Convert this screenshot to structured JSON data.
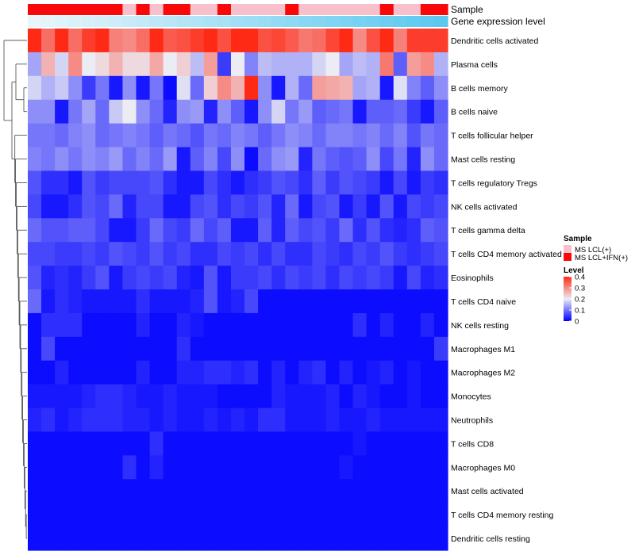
{
  "chart_data": {
    "type": "heatmap",
    "annotations": {
      "sample_label": "Sample",
      "expression_label": "Gene expression level",
      "sample_groups": [
        "MS LCL+IFN(+)",
        "MS LCL+IFN(+)",
        "MS LCL+IFN(+)",
        "MS LCL+IFN(+)",
        "MS LCL+IFN(+)",
        "MS LCL+IFN(+)",
        "MS LCL+IFN(+)",
        "MS LCL(+)",
        "MS LCL+IFN(+)",
        "MS LCL(+)",
        "MS LCL+IFN(+)",
        "MS LCL+IFN(+)",
        "MS LCL(+)",
        "MS LCL(+)",
        "MS LCL+IFN(+)",
        "MS LCL(+)",
        "MS LCL(+)",
        "MS LCL(+)",
        "MS LCL(+)",
        "MS LCL+IFN(+)",
        "MS LCL(+)",
        "MS LCL(+)",
        "MS LCL(+)",
        "MS LCL(+)",
        "MS LCL(+)",
        "MS LCL(+)",
        "MS LCL+IFN(+)",
        "MS LCL(+)",
        "MS LCL(+)",
        "MS LCL+IFN(+)",
        "MS LCL+IFN(+)"
      ],
      "expression_gradient": [
        "#e8f6fb",
        "#5bc8f0"
      ]
    },
    "rows": [
      "Dendritic cells activated",
      "Plasma cells",
      "B cells memory",
      "B cells naive",
      "T cells follicular helper",
      "Mast cells resting",
      "T cells regulatory  Tregs",
      "NK cells activated",
      "T cells gamma delta",
      "T cells CD4 memory activated",
      "Eosinophils",
      "T cells CD4 naive",
      "NK cells resting",
      "Macrophages M1",
      "Macrophages M2",
      "Monocytes",
      "Neutrophils",
      "T cells CD8",
      "Macrophages M0",
      "Mast cells activated",
      "T cells CD4 memory resting",
      "Dendritic cells resting"
    ],
    "values": [
      [
        0.4,
        0.33,
        0.4,
        0.33,
        0.38,
        0.4,
        0.31,
        0.3,
        0.33,
        0.4,
        0.35,
        0.36,
        0.38,
        0.4,
        0.36,
        0.4,
        0.4,
        0.36,
        0.37,
        0.35,
        0.32,
        0.33,
        0.37,
        0.4,
        0.3,
        0.36,
        0.4,
        0.31,
        0.38,
        0.38,
        0.38
      ],
      [
        0.14,
        0.26,
        0.18,
        0.3,
        0.2,
        0.22,
        0.26,
        0.22,
        0.22,
        0.27,
        0.2,
        0.23,
        0.16,
        0.28,
        0.05,
        0.2,
        0.11,
        0.16,
        0.15,
        0.15,
        0.15,
        0.18,
        0.2,
        0.14,
        0.16,
        0.15,
        0.32,
        0.08,
        0.28,
        0.3,
        0.15
      ],
      [
        0.18,
        0.15,
        0.17,
        0.12,
        0.05,
        0.1,
        0.02,
        0.12,
        0.02,
        0.1,
        0.01,
        0.19,
        0.09,
        0.23,
        0.3,
        0.26,
        0.4,
        0.12,
        0.02,
        0.15,
        0.09,
        0.28,
        0.27,
        0.26,
        0.14,
        0.15,
        0.02,
        0.19,
        0.11,
        0.08,
        0.12
      ],
      [
        0.12,
        0.12,
        0.02,
        0.1,
        0.14,
        0.09,
        0.17,
        0.2,
        0.12,
        0.09,
        0.03,
        0.12,
        0.13,
        0.03,
        0.12,
        0.08,
        0.02,
        0.12,
        0.18,
        0.1,
        0.13,
        0.08,
        0.09,
        0.1,
        0.02,
        0.08,
        0.08,
        0.09,
        0.05,
        0.02,
        0.08
      ],
      [
        0.1,
        0.1,
        0.09,
        0.11,
        0.12,
        0.09,
        0.1,
        0.11,
        0.1,
        0.08,
        0.1,
        0.09,
        0.07,
        0.1,
        0.09,
        0.11,
        0.1,
        0.08,
        0.1,
        0.12,
        0.11,
        0.09,
        0.11,
        0.11,
        0.1,
        0.11,
        0.09,
        0.11,
        0.07,
        0.1,
        0.09
      ],
      [
        0.11,
        0.1,
        0.12,
        0.1,
        0.12,
        0.11,
        0.13,
        0.09,
        0.11,
        0.09,
        0.13,
        0.02,
        0.08,
        0.11,
        0.06,
        0.12,
        0.01,
        0.09,
        0.12,
        0.13,
        0.03,
        0.1,
        0.08,
        0.07,
        0.08,
        0.12,
        0.06,
        0.1,
        0.03,
        0.12,
        0.09
      ],
      [
        0.07,
        0.04,
        0.04,
        0.02,
        0.07,
        0.05,
        0.06,
        0.06,
        0.06,
        0.07,
        0.04,
        0.02,
        0.02,
        0.06,
        0.04,
        0.02,
        0.04,
        0.05,
        0.07,
        0.06,
        0.04,
        0.08,
        0.05,
        0.07,
        0.06,
        0.05,
        0.02,
        0.06,
        0.02,
        0.05,
        0.04
      ],
      [
        0.06,
        0.02,
        0.02,
        0.04,
        0.07,
        0.06,
        0.09,
        0.03,
        0.06,
        0.06,
        0.02,
        0.02,
        0.06,
        0.07,
        0.04,
        0.06,
        0.05,
        0.07,
        0.03,
        0.09,
        0.02,
        0.06,
        0.07,
        0.02,
        0.05,
        0.02,
        0.07,
        0.02,
        0.06,
        0.05,
        0.06
      ],
      [
        0.09,
        0.07,
        0.07,
        0.08,
        0.08,
        0.06,
        0.02,
        0.02,
        0.05,
        0.09,
        0.06,
        0.05,
        0.09,
        0.06,
        0.08,
        0.02,
        0.02,
        0.08,
        0.03,
        0.08,
        0.06,
        0.07,
        0.05,
        0.09,
        0.04,
        0.07,
        0.04,
        0.03,
        0.04,
        0.08,
        0.07
      ],
      [
        0.06,
        0.06,
        0.05,
        0.05,
        0.06,
        0.05,
        0.07,
        0.06,
        0.05,
        0.07,
        0.05,
        0.06,
        0.04,
        0.04,
        0.06,
        0.05,
        0.06,
        0.04,
        0.06,
        0.04,
        0.04,
        0.06,
        0.05,
        0.04,
        0.06,
        0.05,
        0.07,
        0.05,
        0.04,
        0.05,
        0.06
      ],
      [
        0.07,
        0.03,
        0.04,
        0.03,
        0.05,
        0.07,
        0.02,
        0.05,
        0.06,
        0.05,
        0.06,
        0.03,
        0.02,
        0.07,
        0.02,
        0.05,
        0.05,
        0.06,
        0.04,
        0.06,
        0.05,
        0.06,
        0.04,
        0.06,
        0.05,
        0.06,
        0.05,
        0.02,
        0.06,
        0.03,
        0.04
      ],
      [
        0.09,
        0.02,
        0.04,
        0.03,
        0.02,
        0.02,
        0.02,
        0.02,
        0.04,
        0.02,
        0.02,
        0.02,
        0.03,
        0.07,
        0.02,
        0.03,
        0.06,
        0.01,
        0.01,
        0.01,
        0.01,
        0.01,
        0.01,
        0.01,
        0.01,
        0.01,
        0.01,
        0.01,
        0.01,
        0.01,
        0.01
      ],
      [
        0.01,
        0.04,
        0.04,
        0.04,
        0.01,
        0.01,
        0.01,
        0.01,
        0.03,
        0.01,
        0.01,
        0.03,
        0.02,
        0.01,
        0.01,
        0.01,
        0.01,
        0.01,
        0.01,
        0.01,
        0.01,
        0.01,
        0.01,
        0.01,
        0.04,
        0.01,
        0.03,
        0.01,
        0.01,
        0.03,
        0.01
      ],
      [
        0.01,
        0.06,
        0.01,
        0.01,
        0.01,
        0.01,
        0.01,
        0.01,
        0.01,
        0.01,
        0.01,
        0.04,
        0.01,
        0.01,
        0.01,
        0.01,
        0.01,
        0.01,
        0.01,
        0.01,
        0.01,
        0.01,
        0.01,
        0.01,
        0.01,
        0.01,
        0.01,
        0.01,
        0.01,
        0.01,
        0.05
      ],
      [
        0.01,
        0.01,
        0.03,
        0.01,
        0.01,
        0.01,
        0.01,
        0.01,
        0.03,
        0.01,
        0.01,
        0.03,
        0.03,
        0.04,
        0.04,
        0.03,
        0.04,
        0.01,
        0.03,
        0.01,
        0.03,
        0.04,
        0.01,
        0.03,
        0.01,
        0.02,
        0.03,
        0.01,
        0.02,
        0.01,
        0.01
      ],
      [
        0.02,
        0.02,
        0.02,
        0.02,
        0.03,
        0.04,
        0.04,
        0.03,
        0.02,
        0.02,
        0.03,
        0.02,
        0.02,
        0.02,
        0.01,
        0.01,
        0.01,
        0.01,
        0.03,
        0.02,
        0.02,
        0.02,
        0.03,
        0.01,
        0.03,
        0.02,
        0.01,
        0.01,
        0.02,
        0.01,
        0.01
      ],
      [
        0.03,
        0.04,
        0.02,
        0.03,
        0.04,
        0.04,
        0.04,
        0.03,
        0.03,
        0.02,
        0.03,
        0.02,
        0.02,
        0.03,
        0.02,
        0.03,
        0.02,
        0.04,
        0.04,
        0.02,
        0.02,
        0.02,
        0.03,
        0.02,
        0.02,
        0.03,
        0.02,
        0.02,
        0.02,
        0.02,
        0.02
      ],
      [
        0.01,
        0.01,
        0.01,
        0.01,
        0.01,
        0.01,
        0.01,
        0.01,
        0.01,
        0.04,
        0.01,
        0.01,
        0.01,
        0.01,
        0.01,
        0.01,
        0.01,
        0.01,
        0.01,
        0.01,
        0.01,
        0.01,
        0.01,
        0.01,
        0.02,
        0.01,
        0.01,
        0.01,
        0.01,
        0.01,
        0.01
      ],
      [
        0.01,
        0.01,
        0.01,
        0.01,
        0.01,
        0.01,
        0.01,
        0.04,
        0.01,
        0.03,
        0.01,
        0.01,
        0.01,
        0.01,
        0.01,
        0.01,
        0.01,
        0.01,
        0.01,
        0.01,
        0.01,
        0.01,
        0.01,
        0.02,
        0.01,
        0.01,
        0.01,
        0.01,
        0.01,
        0.01,
        0.01
      ],
      [
        0.01,
        0.01,
        0.01,
        0.01,
        0.01,
        0.01,
        0.01,
        0.01,
        0.01,
        0.01,
        0.01,
        0.01,
        0.01,
        0.01,
        0.01,
        0.01,
        0.01,
        0.01,
        0.01,
        0.01,
        0.01,
        0.01,
        0.01,
        0.01,
        0.01,
        0.01,
        0.01,
        0.01,
        0.01,
        0.01,
        0.01
      ],
      [
        0.01,
        0.01,
        0.01,
        0.01,
        0.01,
        0.01,
        0.01,
        0.01,
        0.01,
        0.01,
        0.01,
        0.01,
        0.01,
        0.01,
        0.01,
        0.01,
        0.01,
        0.01,
        0.01,
        0.01,
        0.01,
        0.01,
        0.01,
        0.01,
        0.01,
        0.01,
        0.01,
        0.01,
        0.01,
        0.01,
        0.01
      ],
      [
        0.01,
        0.01,
        0.01,
        0.01,
        0.01,
        0.01,
        0.01,
        0.01,
        0.01,
        0.01,
        0.01,
        0.01,
        0.01,
        0.01,
        0.01,
        0.01,
        0.01,
        0.01,
        0.01,
        0.01,
        0.01,
        0.01,
        0.01,
        0.01,
        0.01,
        0.01,
        0.01,
        0.01,
        0.01,
        0.01,
        0.01
      ]
    ],
    "color_scale": {
      "stops": [
        0,
        0.2,
        0.4
      ],
      "colors": [
        "#0000ff",
        "#ececf4",
        "#ff2a16"
      ]
    },
    "legend": {
      "sample_title": "Sample",
      "sample_entries": [
        {
          "label": "MS LCL(+)",
          "color": "#f8c0cc"
        },
        {
          "label": "MS LCL+IFN(+)",
          "color": "#f80808"
        }
      ],
      "level_title": "Level",
      "level_ticks": [
        0.4,
        0.3,
        0.2,
        0.1,
        0
      ],
      "level_tick_labels": [
        "0.4",
        "0.3",
        "0.2",
        "0.1",
        "0"
      ],
      "placement": "right"
    },
    "row_dendrogram": true
  }
}
